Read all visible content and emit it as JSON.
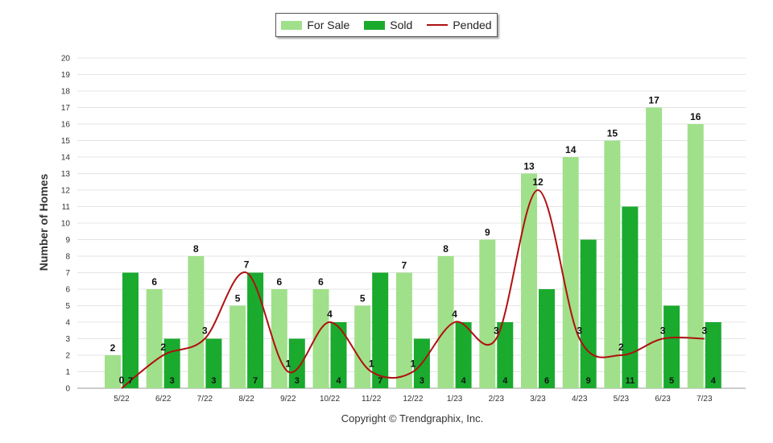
{
  "chart_data": {
    "type": "bar",
    "categories": [
      "5/22",
      "6/22",
      "7/22",
      "8/22",
      "9/22",
      "10/22",
      "11/22",
      "12/22",
      "1/23",
      "2/23",
      "3/23",
      "4/23",
      "5/23",
      "6/23",
      "7/23"
    ],
    "series": [
      {
        "name": "For Sale",
        "kind": "bar",
        "color": "#a0e08a",
        "values": [
          2,
          6,
          8,
          5,
          6,
          6,
          5,
          7,
          8,
          9,
          13,
          14,
          15,
          17,
          16
        ]
      },
      {
        "name": "Sold",
        "kind": "bar",
        "color": "#1aaa2e",
        "values": [
          7,
          3,
          3,
          7,
          3,
          4,
          7,
          3,
          4,
          4,
          6,
          9,
          11,
          5,
          4
        ]
      },
      {
        "name": "Pended",
        "kind": "line",
        "color": "#b01010",
        "values": [
          0,
          2,
          3,
          7,
          1,
          4,
          1,
          1,
          4,
          3,
          12,
          3,
          2,
          3,
          3
        ]
      }
    ],
    "ylabel": "Number of Homes",
    "xlabel": "",
    "ylim": [
      0,
      20
    ],
    "yticks": [
      0,
      1,
      2,
      3,
      4,
      5,
      6,
      7,
      8,
      9,
      10,
      11,
      12,
      13,
      14,
      15,
      16,
      17,
      18,
      19,
      20
    ],
    "grid": true,
    "legend_position": "top-center"
  },
  "footer": {
    "copyright": "Copyright © Trendgraphix, Inc."
  }
}
